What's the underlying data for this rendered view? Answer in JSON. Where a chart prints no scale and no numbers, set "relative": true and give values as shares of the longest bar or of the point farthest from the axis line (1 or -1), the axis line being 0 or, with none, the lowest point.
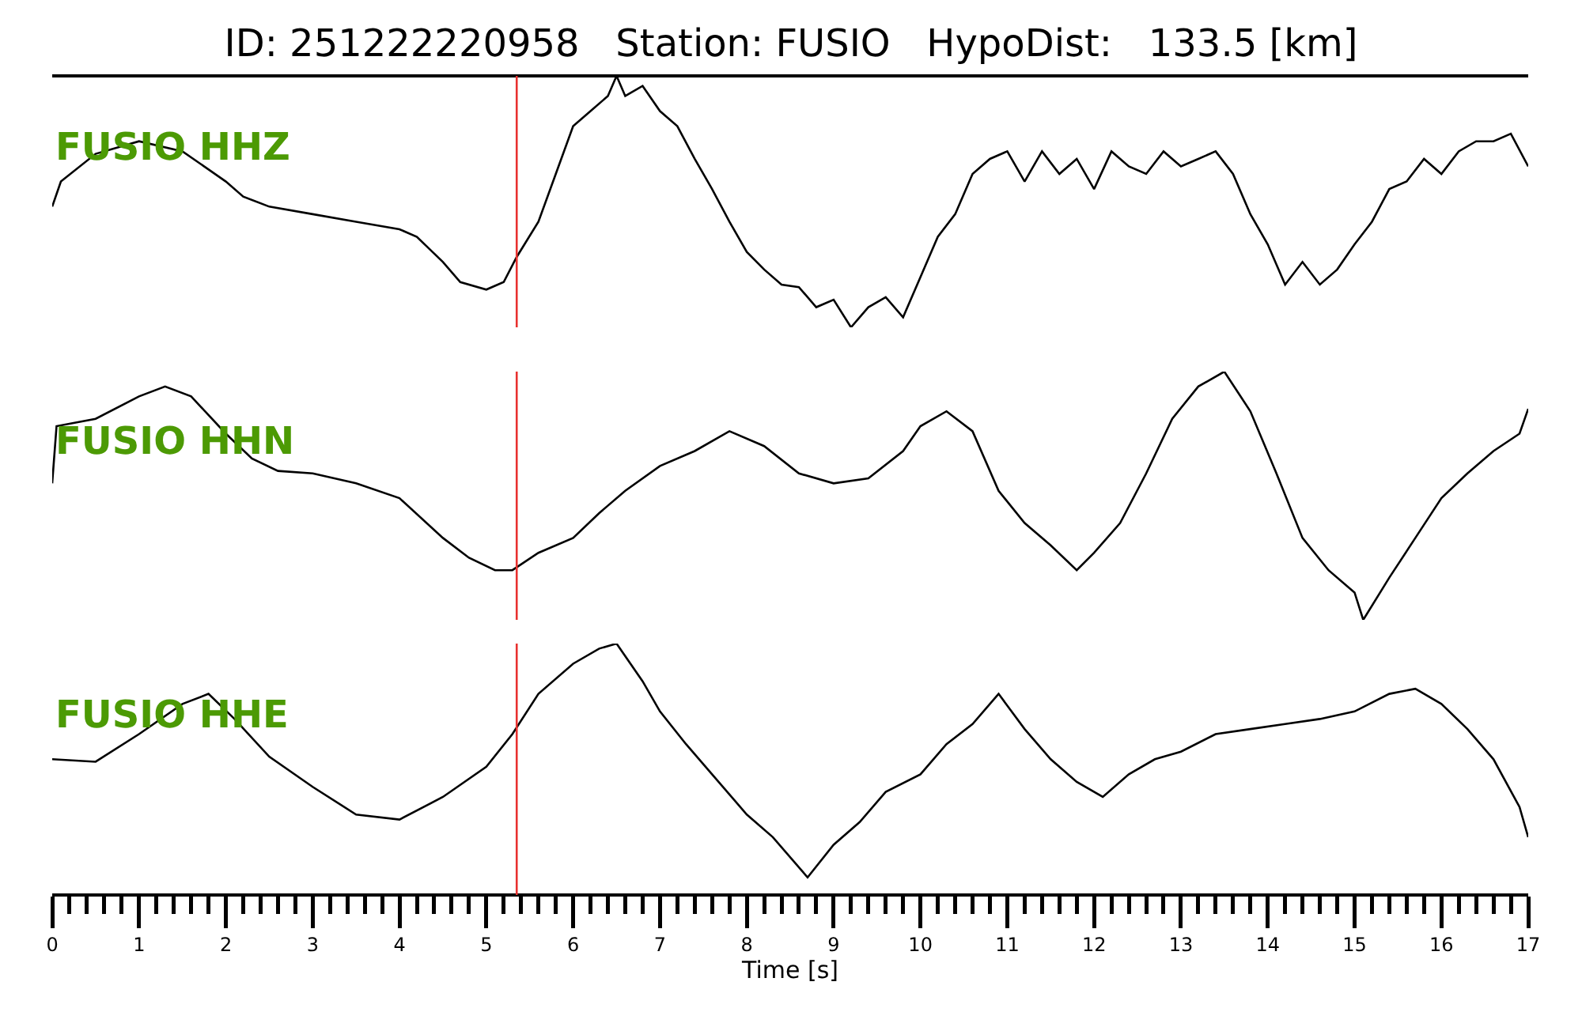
{
  "chart_data": [
    {
      "type": "line",
      "title": "ID: 251222220958   Station: FUSIO   HypoDist:   133.5 [km]",
      "relative": true,
      "xlim": [
        0,
        17
      ],
      "tick_labels": false,
      "ref_lines": [
        {
          "axis": "x",
          "value": 5.35,
          "color": "#e8312f"
        }
      ],
      "x": [
        0,
        0.1,
        0.5,
        1.0,
        1.5,
        2.0,
        2.2,
        2.5,
        3.0,
        3.5,
        4.0,
        4.2,
        4.5,
        4.7,
        5.0,
        5.2,
        5.35,
        5.6,
        5.8,
        6.0,
        6.2,
        6.4,
        6.5,
        6.6,
        6.8,
        7.0,
        7.2,
        7.4,
        7.6,
        7.8,
        8.0,
        8.2,
        8.4,
        8.6,
        8.8,
        9.0,
        9.2,
        9.4,
        9.6,
        9.8,
        10.0,
        10.2,
        10.4,
        10.6,
        10.8,
        11.0,
        11.2,
        11.4,
        11.6,
        11.8,
        12.0,
        12.2,
        12.4,
        12.6,
        12.8,
        13.0,
        13.2,
        13.4,
        13.6,
        13.8,
        14.0,
        14.2,
        14.4,
        14.6,
        14.8,
        15.0,
        15.2,
        15.4,
        15.6,
        15.8,
        16.0,
        16.2,
        16.4,
        16.6,
        16.8,
        17.0
      ],
      "series": [
        {
          "name": "FUSIO HHZ",
          "color": "#000000",
          "values": [
            0.48,
            0.58,
            0.69,
            0.74,
            0.7,
            0.58,
            0.52,
            0.48,
            0.45,
            0.42,
            0.39,
            0.36,
            0.26,
            0.18,
            0.15,
            0.18,
            0.28,
            0.42,
            0.61,
            0.8,
            0.86,
            0.92,
            1.0,
            0.92,
            0.96,
            0.86,
            0.8,
            0.67,
            0.55,
            0.42,
            0.3,
            0.23,
            0.17,
            0.16,
            0.08,
            0.11,
            0,
            0.08,
            0.12,
            0.04,
            0.2,
            0.36,
            0.45,
            0.61,
            0.67,
            0.7,
            0.58,
            0.7,
            0.61,
            0.67,
            0.55,
            0.7,
            0.64,
            0.61,
            0.7,
            0.64,
            0.67,
            0.7,
            0.61,
            0.45,
            0.33,
            0.17,
            0.26,
            0.17,
            0.23,
            0.33,
            0.42,
            0.55,
            0.58,
            0.67,
            0.61,
            0.7,
            0.74,
            0.74,
            0.77,
            0.64
          ]
        }
      ]
    },
    {
      "type": "line",
      "relative": true,
      "xlim": [
        0,
        17
      ],
      "tick_labels": false,
      "ref_lines": [
        {
          "axis": "x",
          "value": 5.35,
          "color": "#e8312f"
        }
      ],
      "x": [
        0,
        0.05,
        0.5,
        1.0,
        1.3,
        1.6,
        2.0,
        2.3,
        2.6,
        3.0,
        3.5,
        4.0,
        4.5,
        4.8,
        5.1,
        5.3,
        5.6,
        6.0,
        6.3,
        6.6,
        7.0,
        7.4,
        7.8,
        8.2,
        8.6,
        9.0,
        9.4,
        9.8,
        10.0,
        10.3,
        10.6,
        10.9,
        11.2,
        11.5,
        11.8,
        12.0,
        12.3,
        12.6,
        12.9,
        13.2,
        13.5,
        13.8,
        14.1,
        14.4,
        14.7,
        15.0,
        15.1,
        15.4,
        15.7,
        16.0,
        16.3,
        16.6,
        16.9,
        17.0
      ],
      "series": [
        {
          "name": "FUSIO HHN",
          "color": "#000000",
          "values": [
            0.55,
            0.78,
            0.81,
            0.9,
            0.94,
            0.9,
            0.75,
            0.65,
            0.6,
            0.59,
            0.55,
            0.49,
            0.33,
            0.25,
            0.2,
            0.2,
            0.27,
            0.33,
            0.43,
            0.52,
            0.62,
            0.68,
            0.76,
            0.7,
            0.59,
            0.55,
            0.57,
            0.68,
            0.78,
            0.84,
            0.76,
            0.52,
            0.39,
            0.3,
            0.2,
            0.27,
            0.39,
            0.59,
            0.81,
            0.94,
            1.0,
            0.84,
            0.59,
            0.33,
            0.2,
            0.11,
            0,
            0.17,
            0.33,
            0.49,
            0.59,
            0.68,
            0.75,
            0.85
          ]
        }
      ]
    },
    {
      "type": "line",
      "relative": true,
      "xlim": [
        0,
        17
      ],
      "tick_labels": "x",
      "xlabel": "Time [s]",
      "xticks": [
        0,
        {
          "value": 0.2,
          "label": null
        },
        {
          "value": 0.4,
          "label": null
        },
        {
          "value": 0.6,
          "label": null
        },
        {
          "value": 0.8,
          "label": null
        },
        1,
        {
          "value": 1.2,
          "label": null
        },
        {
          "value": 1.4,
          "label": null
        },
        {
          "value": 1.6,
          "label": null
        },
        {
          "value": 1.8,
          "label": null
        },
        2,
        {
          "value": 2.2,
          "label": null
        },
        {
          "value": 2.4,
          "label": null
        },
        {
          "value": 2.6,
          "label": null
        },
        {
          "value": 2.8,
          "label": null
        },
        3,
        {
          "value": 3.2,
          "label": null
        },
        {
          "value": 3.4,
          "label": null
        },
        {
          "value": 3.6,
          "label": null
        },
        {
          "value": 3.8,
          "label": null
        },
        4,
        {
          "value": 4.2,
          "label": null
        },
        {
          "value": 4.4,
          "label": null
        },
        {
          "value": 4.6,
          "label": null
        },
        {
          "value": 4.8,
          "label": null
        },
        5,
        {
          "value": 5.2,
          "label": null
        },
        {
          "value": 5.4,
          "label": null
        },
        {
          "value": 5.6,
          "label": null
        },
        {
          "value": 5.8,
          "label": null
        },
        6,
        {
          "value": 6.2,
          "label": null
        },
        {
          "value": 6.4,
          "label": null
        },
        {
          "value": 6.6,
          "label": null
        },
        {
          "value": 6.8,
          "label": null
        },
        7,
        {
          "value": 7.2,
          "label": null
        },
        {
          "value": 7.4,
          "label": null
        },
        {
          "value": 7.6,
          "label": null
        },
        {
          "value": 7.8,
          "label": null
        },
        8,
        {
          "value": 8.2,
          "label": null
        },
        {
          "value": 8.4,
          "label": null
        },
        {
          "value": 8.6,
          "label": null
        },
        {
          "value": 8.8,
          "label": null
        },
        9,
        {
          "value": 9.2,
          "label": null
        },
        {
          "value": 9.4,
          "label": null
        },
        {
          "value": 9.6,
          "label": null
        },
        {
          "value": 9.8,
          "label": null
        },
        10,
        {
          "value": 10.2,
          "label": null
        },
        {
          "value": 10.4,
          "label": null
        },
        {
          "value": 10.6,
          "label": null
        },
        {
          "value": 10.8,
          "label": null
        },
        11,
        {
          "value": 11.2,
          "label": null
        },
        {
          "value": 11.4,
          "label": null
        },
        {
          "value": 11.6,
          "label": null
        },
        {
          "value": 11.8,
          "label": null
        },
        12,
        {
          "value": 12.2,
          "label": null
        },
        {
          "value": 12.4,
          "label": null
        },
        {
          "value": 12.6,
          "label": null
        },
        {
          "value": 12.8,
          "label": null
        },
        13,
        {
          "value": 13.2,
          "label": null
        },
        {
          "value": 13.4,
          "label": null
        },
        {
          "value": 13.6,
          "label": null
        },
        {
          "value": 13.8,
          "label": null
        },
        14,
        {
          "value": 14.2,
          "label": null
        },
        {
          "value": 14.4,
          "label": null
        },
        {
          "value": 14.6,
          "label": null
        },
        {
          "value": 14.8,
          "label": null
        },
        15,
        {
          "value": 15.2,
          "label": null
        },
        {
          "value": 15.4,
          "label": null
        },
        {
          "value": 15.6,
          "label": null
        },
        {
          "value": 15.8,
          "label": null
        },
        16,
        {
          "value": 16.2,
          "label": null
        },
        {
          "value": 16.4,
          "label": null
        },
        {
          "value": 16.6,
          "label": null
        },
        {
          "value": 16.8,
          "label": null
        },
        17
      ],
      "ref_lines": [
        {
          "axis": "x",
          "value": 5.35,
          "color": "#e8312f"
        }
      ],
      "x": [
        0,
        0.5,
        1.0,
        1.5,
        1.8,
        2.1,
        2.5,
        3.0,
        3.5,
        4.0,
        4.5,
        5.0,
        5.3,
        5.6,
        6.0,
        6.3,
        6.5,
        6.8,
        7.0,
        7.3,
        7.6,
        8.0,
        8.3,
        8.7,
        9.0,
        9.3,
        9.6,
        10.0,
        10.3,
        10.6,
        10.9,
        11.2,
        11.5,
        11.8,
        12.1,
        12.4,
        12.7,
        13.0,
        13.4,
        13.8,
        14.2,
        14.6,
        15.0,
        15.4,
        15.7,
        16.0,
        16.3,
        16.6,
        16.9,
        17.0
      ],
      "series": [
        {
          "name": "FUSIO HHE",
          "color": "#000000",
          "values": [
            0.54,
            0.53,
            0.64,
            0.76,
            0.8,
            0.7,
            0.55,
            0.43,
            0.32,
            0.3,
            0.39,
            0.51,
            0.64,
            0.8,
            0.92,
            0.98,
            1.0,
            0.85,
            0.73,
            0.6,
            0.48,
            0.32,
            0.23,
            0.07,
            0.2,
            0.29,
            0.41,
            0.48,
            0.6,
            0.68,
            0.8,
            0.66,
            0.54,
            0.45,
            0.39,
            0.48,
            0.54,
            0.57,
            0.64,
            0.66,
            0.68,
            0.7,
            0.73,
            0.8,
            0.82,
            0.76,
            0.66,
            0.54,
            0.35,
            0.23
          ]
        }
      ]
    }
  ]
}
